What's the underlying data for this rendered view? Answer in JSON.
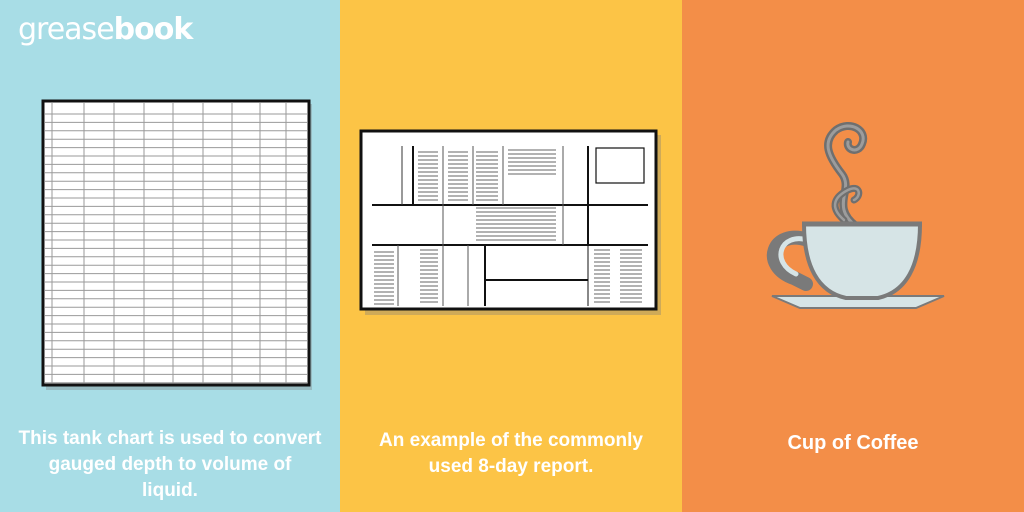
{
  "brand": {
    "prefix": "grease",
    "suffix": "book"
  },
  "colors": {
    "panel_left": "#a8dde6",
    "panel_middle": "#fcc446",
    "panel_right": "#f38e48",
    "text": "#ffffff"
  },
  "panels": [
    {
      "illustration": "tank-chart-illustration",
      "caption_lines": [
        "This tank chart is used to convert",
        "gauged depth to volume of",
        "liquid."
      ]
    },
    {
      "illustration": "eight-day-report-illustration",
      "caption_lines": [
        "An example of the commonly",
        "used 8-day report."
      ]
    },
    {
      "illustration": "coffee-cup-icon",
      "caption_lines": [
        "Cup of Coffee"
      ]
    }
  ]
}
